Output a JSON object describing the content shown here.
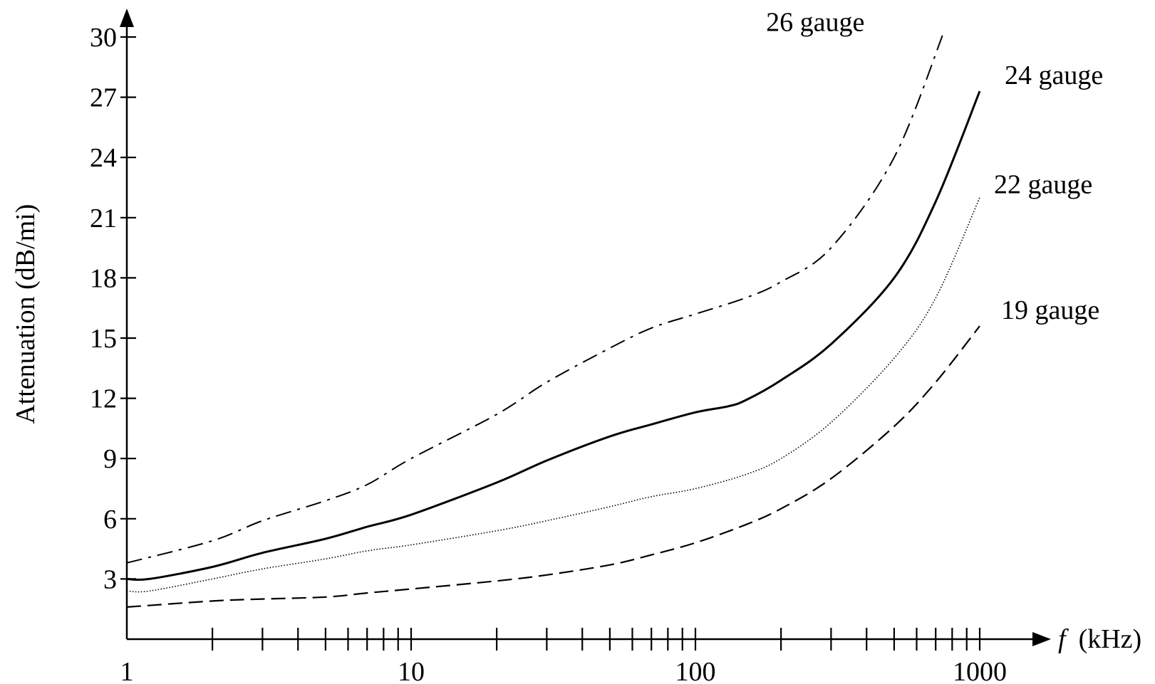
{
  "chart_data": {
    "type": "line",
    "title": "",
    "xlabel": "f",
    "xlabel_unit": "(kHz)",
    "ylabel": "Attenuation (dB/mi)",
    "x_scale": "log",
    "xlim": [
      1,
      1000
    ],
    "ylim": [
      0,
      31
    ],
    "x_tick_labels": [
      "1",
      "10",
      "100",
      "1000"
    ],
    "x_major_ticks": [
      1,
      10,
      100,
      1000
    ],
    "x_minor_ticks": [
      2,
      3,
      4,
      5,
      6,
      7,
      8,
      9,
      20,
      30,
      40,
      50,
      60,
      70,
      80,
      90,
      200,
      300,
      400,
      500,
      600,
      700,
      800,
      900
    ],
    "y_ticks": [
      3,
      6,
      9,
      12,
      15,
      18,
      21,
      24,
      27,
      30
    ],
    "y_tick_labels": [
      "3",
      "6",
      "9",
      "12",
      "15",
      "18",
      "21",
      "24",
      "27",
      "30"
    ],
    "grid": false,
    "series": [
      {
        "name": "26 gauge",
        "style": "dashdot",
        "x": [
          1,
          2,
          3,
          5,
          7,
          10,
          20,
          30,
          50,
          70,
          100,
          150,
          200,
          300,
          500,
          750
        ],
        "y": [
          3.8,
          4.9,
          5.9,
          6.9,
          7.7,
          9.0,
          11.2,
          12.8,
          14.5,
          15.5,
          16.2,
          17.0,
          17.8,
          19.5,
          24.0,
          30.3
        ]
      },
      {
        "name": "24 gauge",
        "style": "solid",
        "x": [
          1,
          1.2,
          2,
          3,
          5,
          7,
          10,
          20,
          30,
          50,
          70,
          100,
          130,
          150,
          200,
          300,
          500,
          700,
          1000
        ],
        "y": [
          3.0,
          3.0,
          3.6,
          4.3,
          5.0,
          5.6,
          6.2,
          7.8,
          8.9,
          10.1,
          10.7,
          11.3,
          11.6,
          11.9,
          12.9,
          14.7,
          18.0,
          21.8,
          27.3
        ]
      },
      {
        "name": "22 gauge",
        "style": "dotted",
        "x": [
          1,
          1.2,
          2,
          3,
          5,
          7,
          10,
          20,
          30,
          50,
          70,
          100,
          150,
          200,
          300,
          500,
          700,
          1000
        ],
        "y": [
          2.4,
          2.4,
          3.0,
          3.5,
          4.0,
          4.4,
          4.7,
          5.4,
          5.9,
          6.6,
          7.1,
          7.5,
          8.2,
          9.0,
          10.8,
          14.0,
          17.0,
          22.0
        ]
      },
      {
        "name": "19 gauge",
        "style": "dashed",
        "x": [
          1,
          2,
          3,
          5,
          7,
          10,
          20,
          30,
          50,
          70,
          100,
          150,
          200,
          300,
          500,
          700,
          1000
        ],
        "y": [
          1.6,
          1.9,
          2.0,
          2.1,
          2.3,
          2.5,
          2.9,
          3.2,
          3.7,
          4.2,
          4.8,
          5.7,
          6.5,
          8.0,
          10.6,
          12.8,
          15.6
        ]
      }
    ]
  }
}
